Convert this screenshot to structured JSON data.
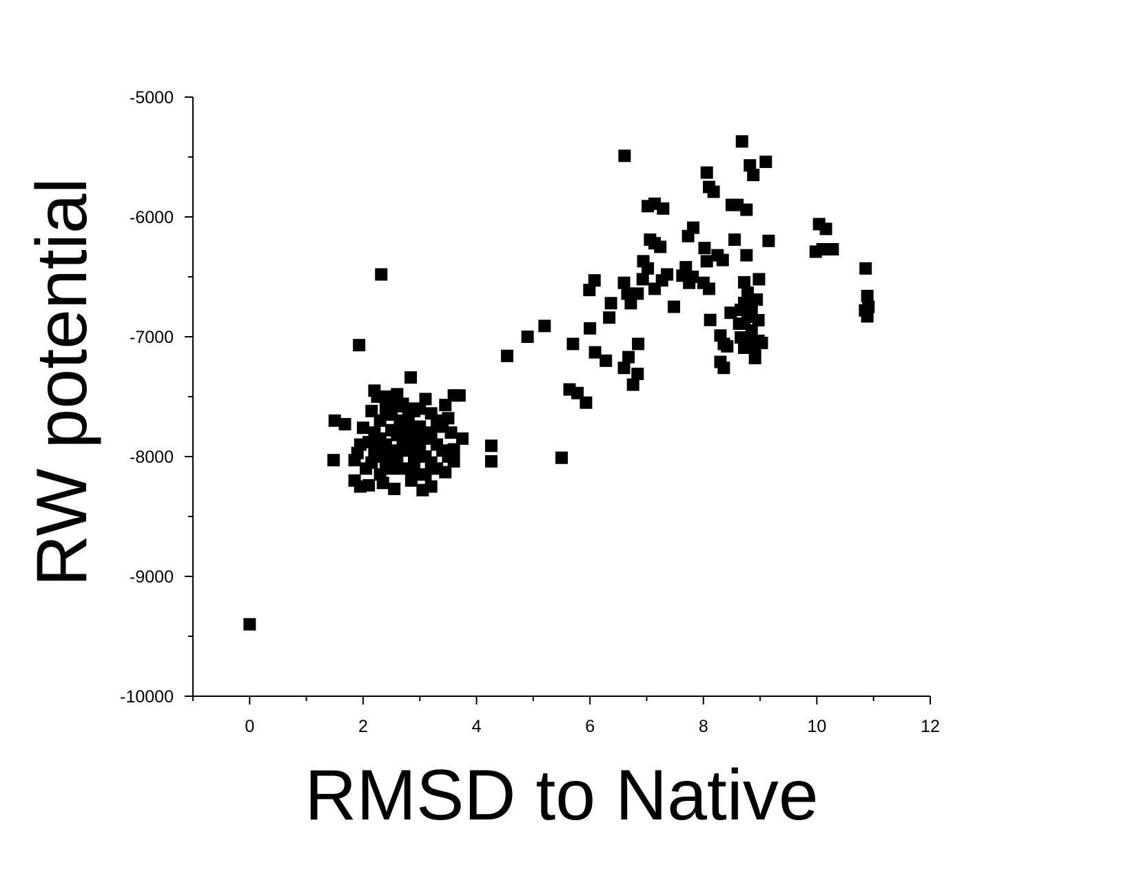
{
  "chart_data": {
    "type": "scatter",
    "xlabel": "RMSD to Native",
    "ylabel": "RW potential",
    "xlim": [
      -1,
      12
    ],
    "xticks": [
      0,
      2,
      4,
      6,
      8,
      10,
      12
    ],
    "xminorticks": [
      -1,
      1,
      3,
      5,
      7,
      9,
      11
    ],
    "ylim": [
      -10000,
      -5000
    ],
    "yticks": [
      -10000,
      -9000,
      -8000,
      -7000,
      -6000,
      -5000
    ],
    "yminorticks": [
      -9500,
      -8500,
      -7500,
      -6500,
      -5500
    ],
    "color": "#000000",
    "x": [
      0,
      2.32,
      1.93,
      2.84,
      4.26,
      4.26,
      1.48,
      1.5,
      1.68,
      4.54,
      4.9,
      5.2,
      5.5,
      5.64,
      5.78,
      5.93,
      5.7,
      6.0,
      5.99,
      6.08,
      6.09,
      6.28,
      6.34,
      6.37,
      6.61,
      6.6,
      6.68,
      6.76,
      6.84,
      6.85,
      6.6,
      6.66,
      6.72,
      6.84,
      6.93,
      6.94,
      7.02,
      7.06,
      7.14,
      7.24,
      7.02,
      7.14,
      7.29,
      7.14,
      7.27,
      7.36,
      7.48,
      7.63,
      7.69,
      7.75,
      7.81,
      7.73,
      7.82,
      8.06,
      8.1,
      8.18,
      8.02,
      8.06,
      8.0,
      8.1,
      8.25,
      8.34,
      8.12,
      8.3,
      8.36,
      8.42,
      8.3,
      8.36,
      8.48,
      8.5,
      8.6,
      8.55,
      8.68,
      8.76,
      8.82,
      8.88,
      9.1,
      9.15,
      8.98,
      8.76,
      8.72,
      8.78,
      8.85,
      8.72,
      8.66,
      8.78,
      8.72,
      8.85,
      8.66,
      8.78,
      8.91,
      8.97,
      9.03,
      8.91,
      8.97,
      8.94,
      8.72,
      8.85,
      8.63,
      10.04,
      10.16,
      9.98,
      10.1,
      10.28,
      10.86,
      10.89,
      10.91,
      10.89,
      10.85,
      2.2,
      2.25,
      2.45,
      2.6,
      3.1,
      3.45,
      3.6,
      3.7,
      3.5,
      3.75,
      3.6,
      3.6,
      3.45,
      3.2,
      3.05,
      2.85,
      2.55,
      2.35,
      2.1,
      1.95,
      1.85,
      1.9,
      1.85,
      2.0,
      2.15,
      2.05,
      2.3,
      2.4,
      2.5,
      2.6,
      2.7,
      2.8,
      2.9,
      3.0,
      3.2,
      3.3,
      3.4,
      2.2,
      2.3,
      2.4,
      2.5,
      2.6,
      2.7,
      2.8,
      2.9,
      3.0,
      3.1,
      3.2,
      3.3,
      3.4,
      2.2,
      2.3,
      2.4,
      2.5,
      2.6,
      2.7,
      2.8,
      2.9,
      3.0,
      3.1,
      3.2,
      3.3,
      2.3,
      2.5,
      2.7,
      2.9,
      3.1,
      2.65,
      2.75,
      2.85,
      2.95,
      3.5,
      1.95,
      2.1,
      2.15,
      3.55
    ],
    "values": [
      -9400,
      -6480,
      -7070,
      -7340,
      -7910,
      -8040,
      -8030,
      -7700,
      -7730,
      -7160,
      -7000,
      -6910,
      -8010,
      -7440,
      -7470,
      -7550,
      -7060,
      -6930,
      -6610,
      -6530,
      -7130,
      -7200,
      -6840,
      -6720,
      -5490,
      -7260,
      -7170,
      -7400,
      -7310,
      -7060,
      -6550,
      -6640,
      -6720,
      -6640,
      -6520,
      -6370,
      -6430,
      -6190,
      -6220,
      -6250,
      -5910,
      -5890,
      -5930,
      -6600,
      -6530,
      -6480,
      -6750,
      -6490,
      -6420,
      -6550,
      -6500,
      -6160,
      -6090,
      -5630,
      -5750,
      -5790,
      -6260,
      -6370,
      -6550,
      -6600,
      -6320,
      -6360,
      -6860,
      -6990,
      -7060,
      -7080,
      -7210,
      -7260,
      -6800,
      -5900,
      -5900,
      -6190,
      -5370,
      -5940,
      -5570,
      -5650,
      -5540,
      -6200,
      -6520,
      -6320,
      -6546,
      -6632,
      -6718,
      -6718,
      -6776,
      -6833,
      -6891,
      -6948,
      -7006,
      -7034,
      -7092,
      -7034,
      -7052,
      -7178,
      -6862,
      -6690,
      -7092,
      -6804,
      -6891,
      -6060,
      -6100,
      -6290,
      -6270,
      -6270,
      -6430,
      -6660,
      -6750,
      -6830,
      -6780,
      -7450,
      -7500,
      -7500,
      -7480,
      -7520,
      -7570,
      -7490,
      -7490,
      -7680,
      -7850,
      -7940,
      -8040,
      -8130,
      -8250,
      -8280,
      -8200,
      -8270,
      -8220,
      -8240,
      -8250,
      -8200,
      -7970,
      -8030,
      -7760,
      -7620,
      -8100,
      -7700,
      -7600,
      -7650,
      -7580,
      -7560,
      -7600,
      -7620,
      -7600,
      -7640,
      -7700,
      -7750,
      -7800,
      -7850,
      -7900,
      -7780,
      -7820,
      -7760,
      -7700,
      -7800,
      -7750,
      -7850,
      -7800,
      -7900,
      -7950,
      -7950,
      -8000,
      -8050,
      -7950,
      -8000,
      -7900,
      -7950,
      -8050,
      -7950,
      -8000,
      -8050,
      -8100,
      -8150,
      -8100,
      -8100,
      -8150,
      -8150,
      -7700,
      -7850,
      -7880,
      -7900,
      -8000,
      -7900,
      -7880,
      -8050,
      -7800
    ]
  }
}
